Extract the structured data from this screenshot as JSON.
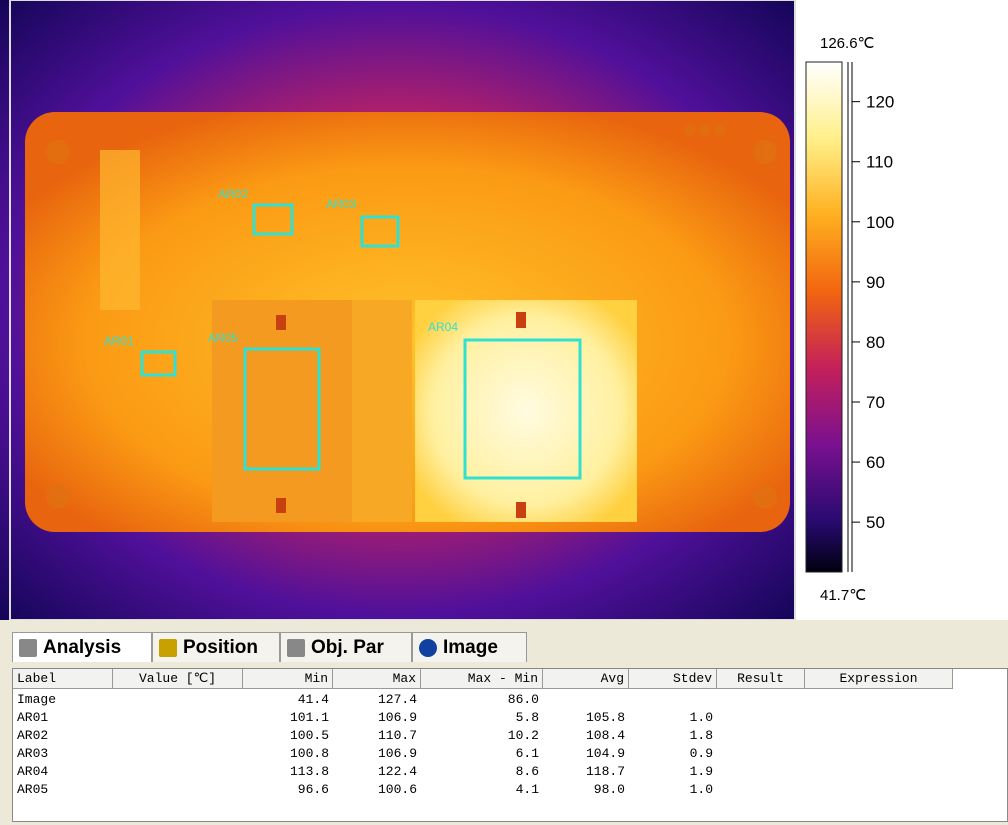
{
  "image": {
    "regions": [
      "AR01",
      "AR02",
      "AR03",
      "AR04",
      "AR05"
    ]
  },
  "scale": {
    "top_label": "126.6℃",
    "bottom_label": "41.7℃",
    "range": [
      41.7,
      126.6
    ],
    "ticks": [
      120,
      110,
      100,
      90,
      80,
      70,
      60,
      50
    ]
  },
  "tabs": [
    "Analysis",
    "Position",
    "Obj. Par",
    "Image"
  ],
  "table": {
    "header": [
      "Label",
      "Value [℃]",
      "Min",
      "Max",
      "Max - Min",
      "Avg",
      "Stdev",
      "Result",
      "Expression"
    ],
    "rows": [
      [
        "Image",
        "",
        "41.4",
        "127.4",
        "86.0",
        "",
        "",
        "",
        ""
      ],
      [
        "AR01",
        "",
        "101.1",
        "106.9",
        "5.8",
        "105.8",
        "1.0",
        "",
        ""
      ],
      [
        "AR02",
        "",
        "100.5",
        "110.7",
        "10.2",
        "108.4",
        "1.8",
        "",
        ""
      ],
      [
        "AR03",
        "",
        "100.8",
        "106.9",
        "6.1",
        "104.9",
        "0.9",
        "",
        ""
      ],
      [
        "AR04",
        "",
        "113.8",
        "122.4",
        "8.6",
        "118.7",
        "1.9",
        "",
        ""
      ],
      [
        "AR05",
        "",
        "96.6",
        "100.6",
        "4.1",
        "98.0",
        "1.0",
        "",
        ""
      ]
    ]
  }
}
